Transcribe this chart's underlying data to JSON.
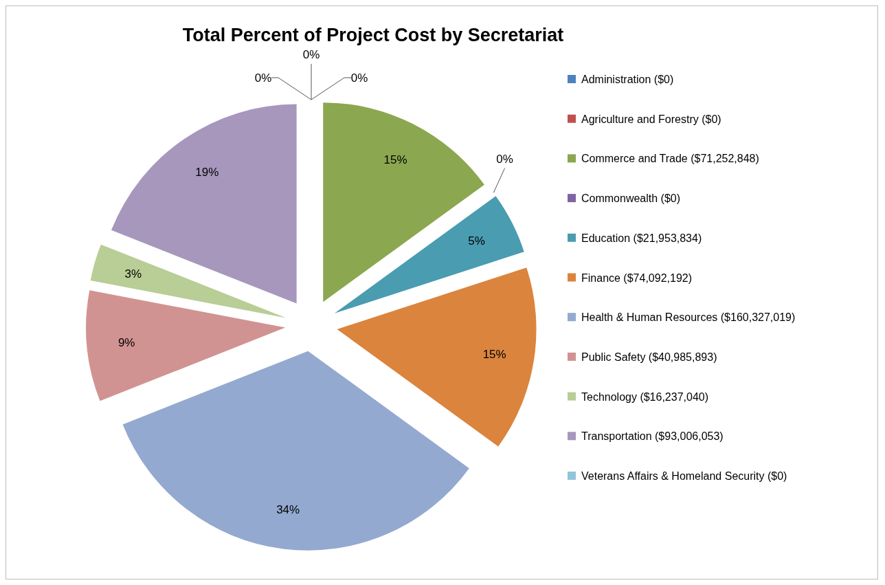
{
  "chart_data": {
    "type": "pie",
    "title": "Total Percent of Project Cost by Secretariat",
    "categories": [
      "Administration ($0)",
      "Agriculture and Forestry ($0)",
      "Commerce and Trade ($71,252,848)",
      "Commonwealth ($0)",
      "Education ($21,953,834)",
      "Finance ($74,092,192)",
      "Health & Human Resources ($160,327,019)",
      "Public Safety ($40,985,893)",
      "Technology ($16,237,040)",
      "Transportation ($93,006,053)",
      "Veterans Affairs & Homeland Security ($0)"
    ],
    "values": [
      0,
      0,
      15,
      0,
      5,
      15,
      34,
      9,
      3,
      19,
      0
    ],
    "value_labels": [
      "0%",
      "0%",
      "15%",
      "0%",
      "5%",
      "15%",
      "34%",
      "9%",
      "3%",
      "19%",
      "0%"
    ],
    "colors": [
      "#4f81bd",
      "#c0504d",
      "#8ba74f",
      "#8064a2",
      "#4a9cb1",
      "#db843d",
      "#93a9cf",
      "#d19392",
      "#b9cd96",
      "#a797bd",
      "#92c5d7"
    ],
    "legend": "right"
  }
}
